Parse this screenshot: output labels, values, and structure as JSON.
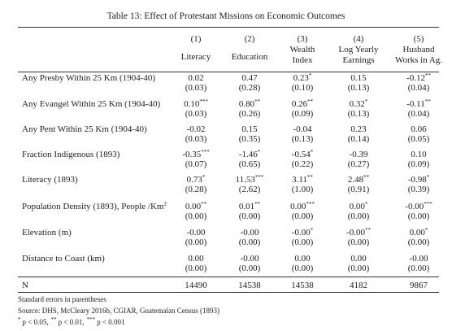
{
  "title": "Table 13: Effect of Protestant Missions on Economic Outcomes",
  "table": {
    "columns": [
      {
        "number": "(1)",
        "name": [
          "Literacy"
        ]
      },
      {
        "number": "(2)",
        "name": [
          "Education"
        ]
      },
      {
        "number": "(3)",
        "name": [
          "Wealth",
          "Index"
        ]
      },
      {
        "number": "(4)",
        "name": [
          "Log Yearly",
          "Earnings"
        ]
      },
      {
        "number": "(5)",
        "name": [
          "Husband",
          "Works in Ag."
        ]
      }
    ],
    "rows": [
      {
        "label": "Any Presby Within 25 Km (1904-40)",
        "cells": [
          {
            "coef": "0.02",
            "se": "(0.03)"
          },
          {
            "coef": "0.47",
            "se": "(0.28)"
          },
          {
            "coef": "0.23",
            "stars": "*",
            "se": "(0.10)"
          },
          {
            "coef": "0.15",
            "se": "(0.13)"
          },
          {
            "coef": "-0.12",
            "stars": "**",
            "se": "(0.04)"
          }
        ]
      },
      {
        "label": "Any Evangel Within 25 Km (1904-40)",
        "cells": [
          {
            "coef": "0.10",
            "stars": "***",
            "se": "(0.03)"
          },
          {
            "coef": "0.80",
            "stars": "**",
            "se": "(0.26)"
          },
          {
            "coef": "0.26",
            "stars": "**",
            "se": "(0.09)"
          },
          {
            "coef": "0.32",
            "stars": "*",
            "se": "(0.13)"
          },
          {
            "coef": "-0.11",
            "stars": "**",
            "se": "(0.04)"
          }
        ]
      },
      {
        "label": "Any Pent Within 25 Km (1904-40)",
        "cells": [
          {
            "coef": "-0.02",
            "se": "(0.03)"
          },
          {
            "coef": "0.15",
            "se": "(0.35)"
          },
          {
            "coef": "-0.04",
            "se": "(0.13)"
          },
          {
            "coef": "0.23",
            "se": "(0.14)"
          },
          {
            "coef": "0.06",
            "se": "(0.05)"
          }
        ]
      },
      {
        "label": "Fraction Indigenous (1893)",
        "cells": [
          {
            "coef": "-0.35",
            "stars": "***",
            "se": "(0.07)"
          },
          {
            "coef": "-1.46",
            "stars": "*",
            "se": "(0.65)"
          },
          {
            "coef": "-0.54",
            "stars": "*",
            "se": "(0.22)"
          },
          {
            "coef": "-0.39",
            "se": "(0.27)"
          },
          {
            "coef": "0.10",
            "se": "(0.09)"
          }
        ]
      },
      {
        "label": "Literacy (1893)",
        "cells": [
          {
            "coef": "0.73",
            "stars": "*",
            "se": "(0.28)"
          },
          {
            "coef": "11.53",
            "stars": "***",
            "se": "(2.62)"
          },
          {
            "coef": "3.11",
            "stars": "**",
            "se": "(1.00)"
          },
          {
            "coef": "2.48",
            "stars": "**",
            "se": "(0.91)"
          },
          {
            "coef": "-0.98",
            "stars": "*",
            "se": "(0.39)"
          }
        ]
      },
      {
        "label": "Population Density (1893), People /Km",
        "label_sup": "2",
        "cells": [
          {
            "coef": "0.00",
            "stars": "**",
            "se": "(0.00)"
          },
          {
            "coef": "0.01",
            "stars": "**",
            "se": "(0.00)"
          },
          {
            "coef": "0.00",
            "stars": "***",
            "se": "(0.00)"
          },
          {
            "coef": "0.00",
            "stars": "*",
            "se": "(0.00)"
          },
          {
            "coef": "-0.00",
            "stars": "***",
            "se": "(0.00)"
          }
        ]
      },
      {
        "label": "Elevation (m)",
        "cells": [
          {
            "coef": "-0.00",
            "se": "(0.00)"
          },
          {
            "coef": "-0.00",
            "se": "(0.00)"
          },
          {
            "coef": "-0.00",
            "stars": "*",
            "se": "(0.00)"
          },
          {
            "coef": "-0.00",
            "stars": "**",
            "se": "(0.00)"
          },
          {
            "coef": "0.00",
            "stars": "*",
            "se": "(0.00)"
          }
        ]
      },
      {
        "label": "Distance to Coast (km)",
        "cells": [
          {
            "coef": "0.00",
            "se": "(0.00)"
          },
          {
            "coef": "-0.00",
            "se": "(0.00)"
          },
          {
            "coef": "0.00",
            "se": "(0.00)"
          },
          {
            "coef": "0.00",
            "se": "(0.00)"
          },
          {
            "coef": "-0.00",
            "se": "(0.00)"
          }
        ]
      }
    ],
    "n_row": {
      "label": "N",
      "values": [
        14490,
        14538,
        14538,
        4182,
        9867
      ]
    }
  },
  "notes": {
    "line1": "Standard errors in parentheses",
    "line2": "Source: DHS, McCleary 2016b, CGIAR, Guatemalan Census (1893)",
    "significance": [
      {
        "stars": "*",
        "text": "p < 0.05,"
      },
      {
        "stars": "**",
        "text": "p < 0.01,"
      },
      {
        "stars": "***",
        "text": "p < 0.001"
      }
    ]
  }
}
